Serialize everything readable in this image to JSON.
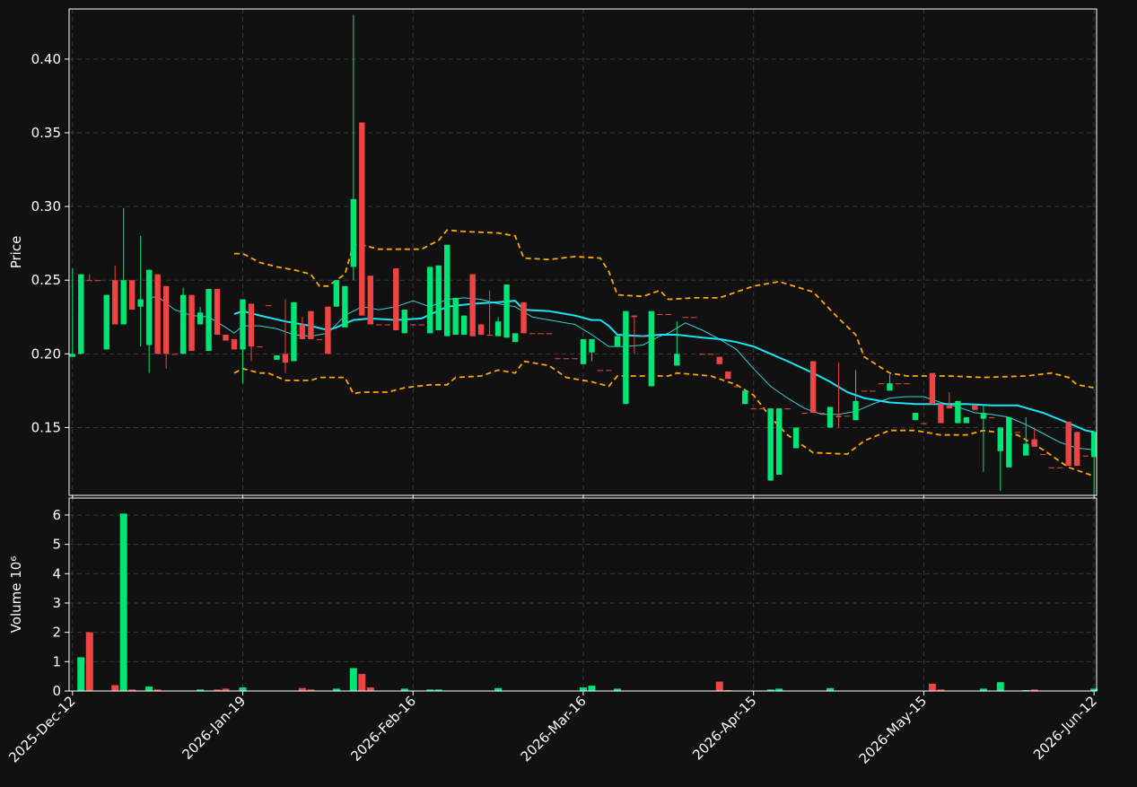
{
  "chart_data": [
    {
      "type": "candlestick",
      "ylabel": "Price",
      "grid": true,
      "up_color": "#00e676",
      "down_color": "#ef4444",
      "xlim": [
        -0.4,
        120.3
      ],
      "ylim": [
        0.104,
        0.434
      ],
      "xticks": [
        {
          "value": 0,
          "label": "2025-Dec-12"
        },
        {
          "value": 20,
          "label": "2026-Jan-19"
        },
        {
          "value": 40,
          "label": "2026-Feb-16"
        },
        {
          "value": 60,
          "label": "2026-Mar-16"
        },
        {
          "value": 80,
          "label": "2026-Apr-15"
        },
        {
          "value": 100,
          "label": "2026-May-15"
        },
        {
          "value": 120,
          "label": "2026-Jun-12"
        }
      ],
      "yticks": [
        {
          "value": 0.15,
          "label": "0.15"
        },
        {
          "value": 0.2,
          "label": "0.20"
        },
        {
          "value": 0.25,
          "label": "0.25"
        },
        {
          "value": 0.3,
          "label": "0.30"
        },
        {
          "value": 0.35,
          "label": "0.35"
        },
        {
          "value": 0.4,
          "label": "0.40"
        }
      ],
      "open": [
        0.198,
        0.2,
        0.25,
        0.25,
        0.203,
        0.25,
        0.22,
        0.25,
        0.232,
        0.206,
        0.254,
        0.246,
        0.2,
        0.2,
        0.24,
        0.22,
        0.202,
        0.244,
        0.213,
        0.21,
        0.203,
        0.234,
        0.205,
        0.233,
        0.196,
        0.2,
        0.195,
        0.22,
        0.229,
        0.21,
        0.232,
        0.232,
        0.218,
        0.259,
        0.357,
        0.253,
        0.22,
        0.22,
        0.258,
        0.214,
        0.22,
        0.22,
        0.214,
        0.216,
        0.212,
        0.213,
        0.213,
        0.254,
        0.22,
        0.213,
        0.212,
        0.211,
        0.208,
        0.235,
        0.214,
        0.214,
        0.214,
        0.197,
        0.197,
        0.197,
        0.193,
        0.201,
        0.189,
        0.189,
        0.205,
        0.166,
        0.226,
        0.212,
        0.178,
        0.227,
        0.227,
        0.192,
        0.225,
        0.225,
        0.2,
        0.2,
        0.198,
        0.188,
        0.178,
        0.166,
        0.163,
        0.163,
        0.114,
        0.118,
        0.163,
        0.136,
        0.16,
        0.195,
        0.16,
        0.15,
        0.158,
        0.158,
        0.155,
        0.175,
        0.175,
        0.18,
        0.175,
        0.18,
        0.18,
        0.155,
        0.153,
        0.187,
        0.166,
        0.165,
        0.153,
        0.153,
        0.165,
        0.156,
        0.157,
        0.134,
        0.123,
        0.147,
        0.131,
        0.142,
        0.132,
        0.123,
        0.123,
        0.154,
        0.147,
        0.131,
        0.13
      ],
      "high": [
        0.258,
        0.254,
        0.254,
        0.25,
        0.24,
        0.26,
        0.299,
        0.25,
        0.28,
        0.257,
        0.254,
        0.246,
        0.2,
        0.245,
        0.24,
        0.232,
        0.244,
        0.244,
        0.213,
        0.21,
        0.237,
        0.234,
        0.205,
        0.233,
        0.199,
        0.237,
        0.235,
        0.225,
        0.229,
        0.21,
        0.232,
        0.25,
        0.246,
        0.43,
        0.357,
        0.253,
        0.22,
        0.22,
        0.258,
        0.23,
        0.22,
        0.22,
        0.259,
        0.26,
        0.274,
        0.238,
        0.226,
        0.254,
        0.22,
        0.243,
        0.225,
        0.247,
        0.214,
        0.235,
        0.214,
        0.214,
        0.214,
        0.197,
        0.197,
        0.197,
        0.21,
        0.21,
        0.189,
        0.189,
        0.213,
        0.229,
        0.226,
        0.212,
        0.229,
        0.227,
        0.227,
        0.222,
        0.225,
        0.225,
        0.2,
        0.2,
        0.198,
        0.188,
        0.178,
        0.175,
        0.163,
        0.163,
        0.163,
        0.163,
        0.163,
        0.15,
        0.16,
        0.195,
        0.16,
        0.164,
        0.194,
        0.158,
        0.189,
        0.175,
        0.175,
        0.18,
        0.186,
        0.18,
        0.18,
        0.16,
        0.153,
        0.187,
        0.166,
        0.174,
        0.168,
        0.157,
        0.165,
        0.165,
        0.157,
        0.15,
        0.157,
        0.147,
        0.157,
        0.15,
        0.132,
        0.123,
        0.123,
        0.154,
        0.147,
        0.131,
        0.147
      ],
      "low": [
        0.198,
        0.2,
        0.25,
        0.25,
        0.203,
        0.22,
        0.22,
        0.23,
        0.205,
        0.187,
        0.2,
        0.19,
        0.2,
        0.2,
        0.202,
        0.22,
        0.202,
        0.213,
        0.209,
        0.203,
        0.18,
        0.195,
        0.205,
        0.233,
        0.196,
        0.187,
        0.195,
        0.21,
        0.21,
        0.21,
        0.2,
        0.232,
        0.218,
        0.25,
        0.226,
        0.22,
        0.22,
        0.22,
        0.216,
        0.214,
        0.22,
        0.22,
        0.214,
        0.216,
        0.212,
        0.213,
        0.213,
        0.212,
        0.213,
        0.213,
        0.212,
        0.211,
        0.208,
        0.214,
        0.214,
        0.214,
        0.214,
        0.197,
        0.197,
        0.197,
        0.193,
        0.195,
        0.189,
        0.189,
        0.205,
        0.166,
        0.2,
        0.212,
        0.178,
        0.227,
        0.227,
        0.192,
        0.225,
        0.225,
        0.2,
        0.2,
        0.193,
        0.183,
        0.178,
        0.166,
        0.163,
        0.163,
        0.114,
        0.118,
        0.163,
        0.136,
        0.16,
        0.16,
        0.16,
        0.15,
        0.15,
        0.158,
        0.155,
        0.175,
        0.175,
        0.18,
        0.175,
        0.18,
        0.18,
        0.155,
        0.153,
        0.166,
        0.153,
        0.163,
        0.153,
        0.153,
        0.162,
        0.12,
        0.157,
        0.107,
        0.123,
        0.147,
        0.131,
        0.137,
        0.132,
        0.123,
        0.123,
        0.124,
        0.124,
        0.131,
        0.104
      ],
      "close": [
        0.2,
        0.254,
        0.25,
        0.25,
        0.24,
        0.22,
        0.25,
        0.23,
        0.237,
        0.257,
        0.2,
        0.2,
        0.2,
        0.24,
        0.202,
        0.228,
        0.244,
        0.213,
        0.209,
        0.203,
        0.237,
        0.205,
        0.205,
        0.233,
        0.199,
        0.194,
        0.235,
        0.21,
        0.21,
        0.21,
        0.2,
        0.25,
        0.246,
        0.305,
        0.226,
        0.22,
        0.22,
        0.22,
        0.216,
        0.23,
        0.22,
        0.22,
        0.259,
        0.26,
        0.274,
        0.238,
        0.226,
        0.212,
        0.213,
        0.213,
        0.222,
        0.247,
        0.214,
        0.214,
        0.214,
        0.214,
        0.214,
        0.197,
        0.197,
        0.197,
        0.21,
        0.21,
        0.189,
        0.189,
        0.212,
        0.229,
        0.225,
        0.212,
        0.229,
        0.227,
        0.227,
        0.2,
        0.225,
        0.225,
        0.2,
        0.2,
        0.193,
        0.183,
        0.178,
        0.175,
        0.163,
        0.163,
        0.163,
        0.163,
        0.163,
        0.15,
        0.16,
        0.16,
        0.16,
        0.164,
        0.157,
        0.158,
        0.168,
        0.175,
        0.175,
        0.18,
        0.18,
        0.18,
        0.18,
        0.16,
        0.153,
        0.166,
        0.153,
        0.163,
        0.168,
        0.157,
        0.162,
        0.16,
        0.157,
        0.15,
        0.157,
        0.147,
        0.139,
        0.137,
        0.132,
        0.123,
        0.123,
        0.124,
        0.124,
        0.131,
        0.147
      ],
      "lines": [
        {
          "color": "#ffa500",
          "width": 1.8,
          "dash": true,
          "x": [
            19,
            20,
            22,
            24,
            26,
            28,
            29,
            30,
            32,
            33,
            34,
            36,
            39,
            41,
            43,
            44,
            46,
            50,
            52,
            53,
            56,
            59,
            62,
            63,
            64,
            67,
            69,
            70,
            73,
            76,
            80,
            83,
            87,
            90,
            92,
            93,
            96,
            98,
            103,
            107,
            112,
            115,
            117,
            118,
            120
          ],
          "values": [
            0.268,
            0.268,
            0.262,
            0.259,
            0.257,
            0.254,
            0.246,
            0.246,
            0.254,
            0.274,
            0.274,
            0.271,
            0.271,
            0.271,
            0.277,
            0.284,
            0.283,
            0.282,
            0.28,
            0.265,
            0.264,
            0.266,
            0.265,
            0.256,
            0.24,
            0.239,
            0.243,
            0.237,
            0.238,
            0.238,
            0.246,
            0.249,
            0.242,
            0.224,
            0.213,
            0.198,
            0.187,
            0.185,
            0.185,
            0.184,
            0.185,
            0.187,
            0.184,
            0.179,
            0.177
          ]
        },
        {
          "color": "#ffa500",
          "width": 1.8,
          "dash": true,
          "x": [
            19,
            20,
            22,
            23,
            25,
            28,
            29,
            32,
            33,
            34,
            37,
            39,
            42,
            44,
            45,
            48,
            50,
            52,
            53,
            56,
            58,
            61,
            63,
            64,
            67,
            70,
            71,
            75,
            78,
            80,
            82,
            84,
            87,
            91,
            93,
            96,
            99,
            102,
            105,
            107,
            111,
            114,
            117,
            120
          ],
          "values": [
            0.187,
            0.19,
            0.187,
            0.187,
            0.182,
            0.182,
            0.184,
            0.184,
            0.173,
            0.174,
            0.174,
            0.177,
            0.179,
            0.179,
            0.184,
            0.185,
            0.189,
            0.187,
            0.195,
            0.192,
            0.184,
            0.181,
            0.178,
            0.185,
            0.185,
            0.185,
            0.187,
            0.185,
            0.179,
            0.172,
            0.157,
            0.145,
            0.133,
            0.132,
            0.141,
            0.148,
            0.148,
            0.145,
            0.145,
            0.148,
            0.145,
            0.135,
            0.123,
            0.117
          ]
        },
        {
          "color": "#3ccfd6",
          "width": 1,
          "dash": false,
          "x": [
            9,
            10,
            12,
            14,
            16,
            18,
            19,
            20,
            22,
            24,
            26,
            28,
            30,
            32,
            33,
            34,
            36,
            38,
            40,
            42,
            44,
            46,
            48,
            50,
            52,
            54,
            57,
            59,
            61,
            63,
            65,
            67,
            69,
            70,
            72,
            74,
            76,
            78,
            80,
            82,
            84,
            86,
            88,
            90,
            92,
            94,
            96,
            98,
            100,
            102,
            104,
            106,
            108,
            110,
            112,
            114,
            116,
            118,
            120
          ],
          "values": [
            0.238,
            0.239,
            0.23,
            0.226,
            0.225,
            0.218,
            0.214,
            0.219,
            0.219,
            0.217,
            0.213,
            0.212,
            0.214,
            0.226,
            0.229,
            0.232,
            0.23,
            0.232,
            0.236,
            0.232,
            0.237,
            0.238,
            0.237,
            0.234,
            0.232,
            0.225,
            0.222,
            0.22,
            0.213,
            0.205,
            0.205,
            0.206,
            0.212,
            0.214,
            0.221,
            0.216,
            0.21,
            0.203,
            0.19,
            0.178,
            0.17,
            0.163,
            0.159,
            0.159,
            0.161,
            0.166,
            0.17,
            0.171,
            0.171,
            0.167,
            0.164,
            0.16,
            0.159,
            0.157,
            0.152,
            0.146,
            0.14,
            0.136,
            0.135
          ]
        },
        {
          "color": "#18e4f5",
          "width": 2,
          "dash": false,
          "x": [
            19,
            20,
            22,
            25,
            28,
            30,
            31,
            33,
            35,
            38,
            41,
            44,
            47,
            50,
            52,
            53,
            56,
            59,
            61,
            62,
            63,
            64,
            67,
            69,
            71,
            74,
            76,
            78,
            80,
            82,
            84,
            87,
            89,
            91,
            93,
            96,
            99,
            102,
            105,
            108,
            111,
            114,
            117,
            119,
            120
          ],
          "values": [
            0.227,
            0.229,
            0.226,
            0.222,
            0.219,
            0.216,
            0.218,
            0.223,
            0.224,
            0.223,
            0.224,
            0.232,
            0.234,
            0.235,
            0.236,
            0.23,
            0.229,
            0.226,
            0.223,
            0.223,
            0.219,
            0.213,
            0.212,
            0.213,
            0.213,
            0.211,
            0.21,
            0.208,
            0.205,
            0.2,
            0.195,
            0.187,
            0.181,
            0.174,
            0.17,
            0.167,
            0.166,
            0.166,
            0.166,
            0.165,
            0.165,
            0.16,
            0.153,
            0.148,
            0.147
          ]
        }
      ]
    },
    {
      "type": "bar",
      "ylabel": "Volume  10⁶",
      "grid": true,
      "xlim": [
        -0.4,
        120.3
      ],
      "ylim": [
        0,
        6.58
      ],
      "yticks": [
        0,
        1,
        2,
        3,
        4,
        5,
        6
      ],
      "values": [
        0.01,
        1.15,
        2.0,
        0,
        0.01,
        0.2,
        6.05,
        0.05,
        0.01,
        0.15,
        0.05,
        0.01,
        0,
        0.01,
        0.01,
        0.05,
        0.01,
        0.05,
        0.08,
        0.01,
        0.12,
        0.01,
        0,
        0,
        0.01,
        0.01,
        0.01,
        0.1,
        0.05,
        0,
        0.01,
        0.08,
        0.01,
        0.78,
        0.58,
        0.12,
        0,
        0,
        0.01,
        0.08,
        0,
        0,
        0.05,
        0.05,
        0.01,
        0.01,
        0.01,
        0.01,
        0.01,
        0.01,
        0.1,
        0.01,
        0.01,
        0.01,
        0,
        0,
        0,
        0,
        0,
        0,
        0.12,
        0.18,
        0,
        0,
        0.08,
        0.01,
        0.01,
        0,
        0.01,
        0,
        0,
        0.01,
        0,
        0,
        0,
        0,
        0.32,
        0.03,
        0,
        0.01,
        0,
        0,
        0.05,
        0.08,
        0,
        0.01,
        0,
        0.01,
        0,
        0.1,
        0.01,
        0,
        0.01,
        0,
        0,
        0,
        0.01,
        0,
        0,
        0.01,
        0,
        0.25,
        0.05,
        0.01,
        0.01,
        0.01,
        0.01,
        0.08,
        0,
        0.3,
        0.01,
        0,
        0.03,
        0.05,
        0,
        0,
        0,
        0.01,
        0.01,
        0,
        0.08
      ]
    }
  ]
}
